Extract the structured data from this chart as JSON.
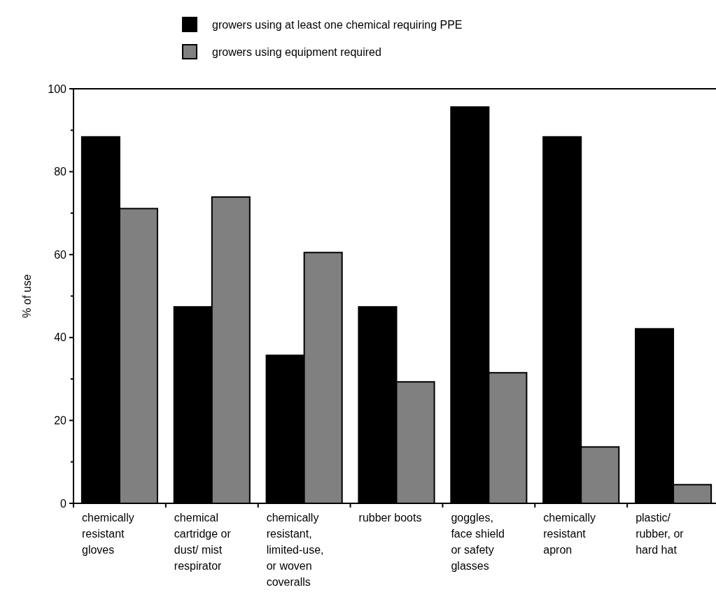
{
  "chart_data": {
    "type": "bar",
    "ylabel": "% of use",
    "categories": [
      "chemically resistant gloves",
      "chemical cartridge or dust/ mist respirator",
      "chemically resistant, limited-use, or woven coveralls",
      "rubber boots",
      "goggles, face shield or safety glasses",
      "chemically resistant apron",
      "plastic/ rubber, or hard hat"
    ],
    "series": [
      {
        "name": "growers using at least one chemical requiring PPE",
        "color": "#000000",
        "values": [
          88.4,
          47.4,
          35.7,
          47.4,
          95.6,
          88.4,
          42.1
        ]
      },
      {
        "name": "growers using equipment required",
        "color": "#808080",
        "values": [
          71.1,
          73.9,
          60.5,
          29.3,
          31.5,
          13.6,
          4.5
        ]
      }
    ],
    "ylim": [
      0,
      100
    ],
    "yticks": [
      0,
      {
        "value": 10,
        "label": null
      },
      20,
      {
        "value": 30,
        "label": null
      },
      40,
      {
        "value": 50,
        "label": null
      },
      60,
      {
        "value": 70,
        "label": null
      },
      80,
      {
        "value": 90,
        "label": null
      },
      100
    ],
    "grid": false,
    "legend": "top"
  }
}
